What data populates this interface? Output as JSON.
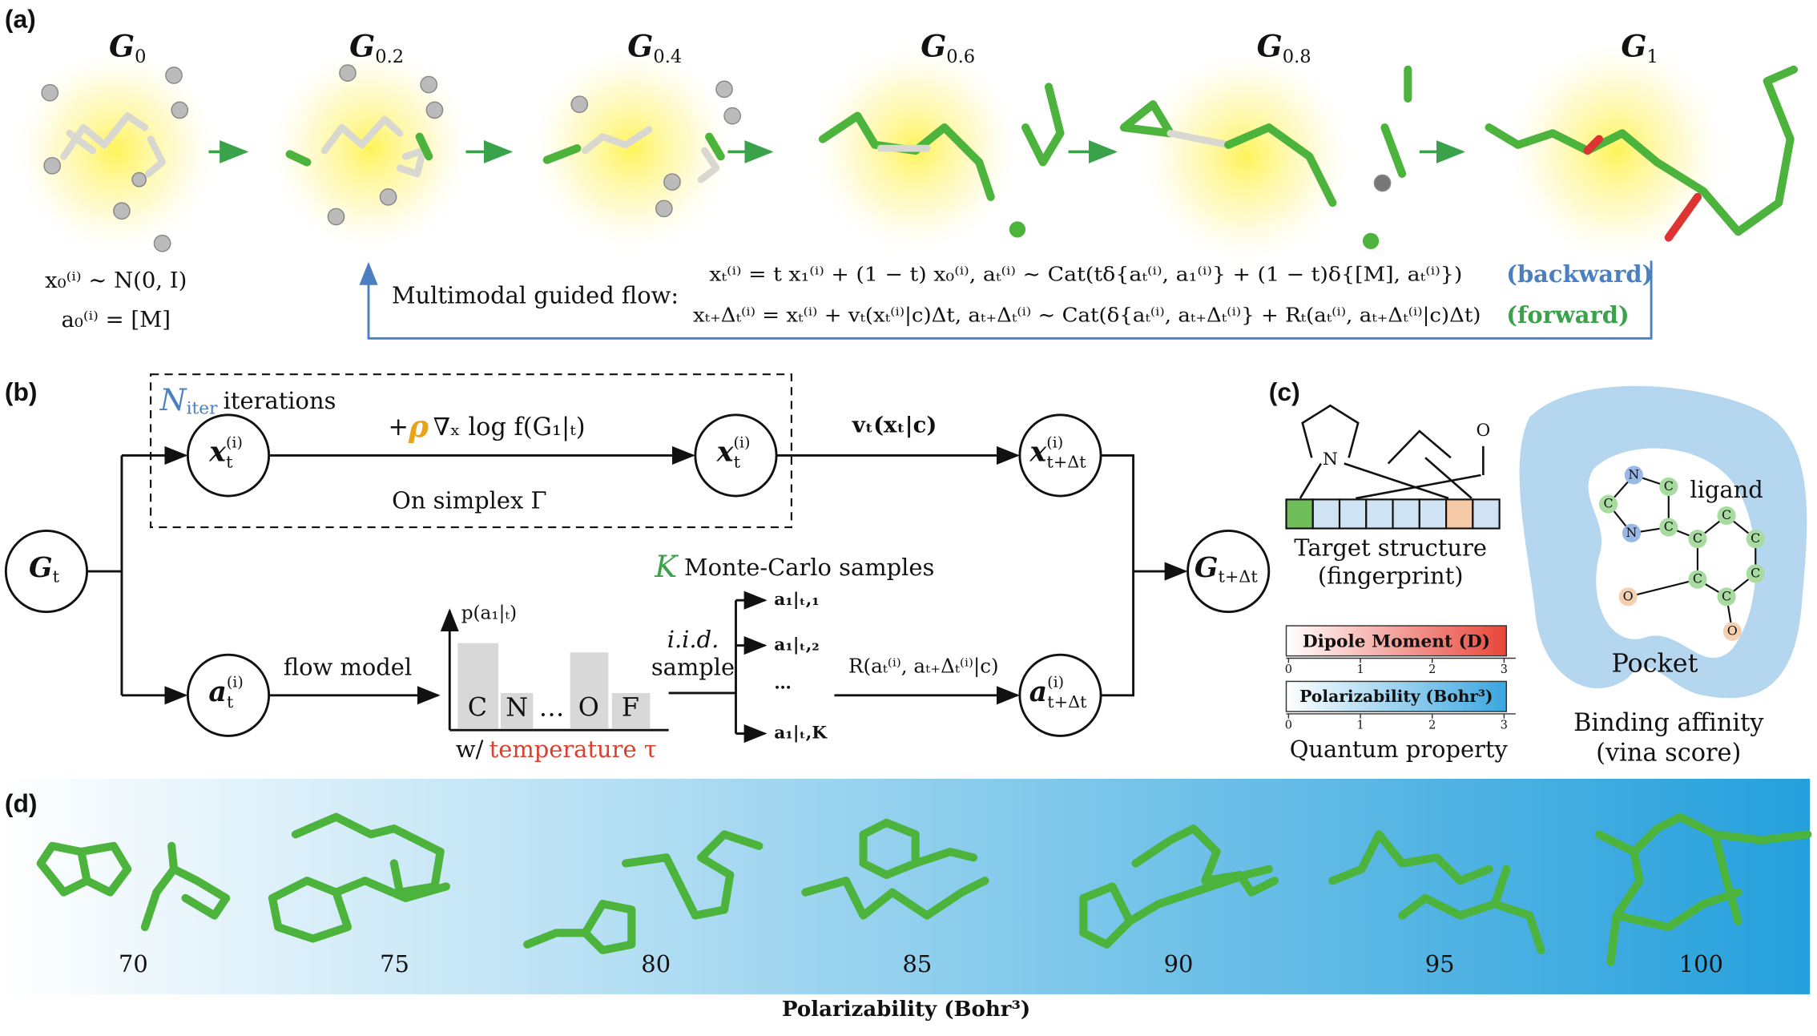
{
  "panel_a": {
    "label": "(a)",
    "stages": [
      {
        "symbol": "G",
        "sub": "0"
      },
      {
        "symbol": "G",
        "sub": "0.2"
      },
      {
        "symbol": "G",
        "sub": "0.4"
      },
      {
        "symbol": "G",
        "sub": "0.6"
      },
      {
        "symbol": "G",
        "sub": "0.8"
      },
      {
        "symbol": "G",
        "sub": "1"
      }
    ],
    "prior": [
      "x₀⁽ⁱ⁾ ∼ N(0, I)",
      "a₀⁽ⁱ⁾ = [M]"
    ],
    "flow_label": "Multimodal guided flow:",
    "equations": [
      {
        "text": "xₜ⁽ⁱ⁾ = t x₁⁽ⁱ⁾ + (1 − t) x₀⁽ⁱ⁾, aₜ⁽ⁱ⁾ ∼ Cat(tδ{aₜ⁽ⁱ⁾, a₁⁽ⁱ⁾} + (1 − t)δ{[M], aₜ⁽ⁱ⁾})",
        "tag": "(backward)"
      },
      {
        "text": "xₜ₊Δₜ⁽ⁱ⁾ = xₜ⁽ⁱ⁾ + vₜ(xₜ⁽ⁱ⁾|c)Δt, aₜ₊Δₜ⁽ⁱ⁾ ∼ Cat(δ{aₜ⁽ⁱ⁾, aₜ₊Δₜ⁽ⁱ⁾} + Rₜ(aₜ⁽ⁱ⁾, aₜ₊Δₜ⁽ⁱ⁾|c)Δt)",
        "tag": "(forward)"
      }
    ]
  },
  "panel_b": {
    "label": "(b)",
    "iter_symbol": "N",
    "iter_sub": "iter",
    "iter_text": "iterations",
    "nodes": [
      {
        "symbol": "G",
        "sub": "t"
      },
      {
        "symbol": "x",
        "sub": "t",
        "sup": "(i)"
      },
      {
        "symbol": "x",
        "sub": "t",
        "sup": "(i)"
      },
      {
        "symbol": "x",
        "sub": "t+Δt",
        "sup": "(i)"
      },
      {
        "symbol": "a",
        "sub": "t",
        "sup": "(i)"
      },
      {
        "symbol": "a",
        "sub": "t+Δt",
        "sup": "(i)"
      },
      {
        "symbol": "G",
        "sub": "t+Δt"
      }
    ],
    "guidance_plus": "+",
    "guidance_rho": "ρ",
    "guidance_rest": "∇ₓ log f(G₁|ₜ)",
    "simplex": "On simplex Γ",
    "velocity": "vₜ(xₜ|c)",
    "mc_symbol": "K",
    "mc_text": "Monte-Carlo samples",
    "flow_model": "flow model",
    "prob_label": "p(a₁|ₜ)",
    "atoms": [
      "C",
      "N",
      "…",
      "O",
      "F"
    ],
    "temp_prefix": "w/",
    "temp_text": "temperature τ",
    "iid": "i.i.d.",
    "sample": "sample",
    "samples": [
      "a₁|ₜ,₁",
      "a₁|ₜ,₂",
      "…",
      "a₁|ₜ,K"
    ],
    "rate": "R(aₜ⁽ⁱ⁾, aₜ₊Δₜ⁽ⁱ⁾|c)"
  },
  "panel_c": {
    "label": "(c)",
    "ring_atom": "N",
    "chain_atom": "O",
    "fingerprint": [
      "Target structure",
      "(fingerprint)"
    ],
    "dipole": "Dipole Moment (D)",
    "polarizability": "Polarizability (Bohr³)",
    "ticks": [
      0,
      1,
      2,
      3
    ],
    "quantum": "Quantum property",
    "ligand": "ligand",
    "pocket": "Pocket",
    "affinity": [
      "Binding affinity",
      "(vina score)"
    ],
    "ligand_atoms": [
      "N",
      "C",
      "C",
      "N",
      "C",
      "C",
      "C",
      "C",
      "C",
      "C",
      "C",
      "O",
      "O"
    ]
  },
  "panel_d": {
    "label": "(d)",
    "values": [
      70,
      75,
      80,
      85,
      90,
      95,
      100
    ],
    "axis_label": "Polarizability (Bohr³)"
  }
}
